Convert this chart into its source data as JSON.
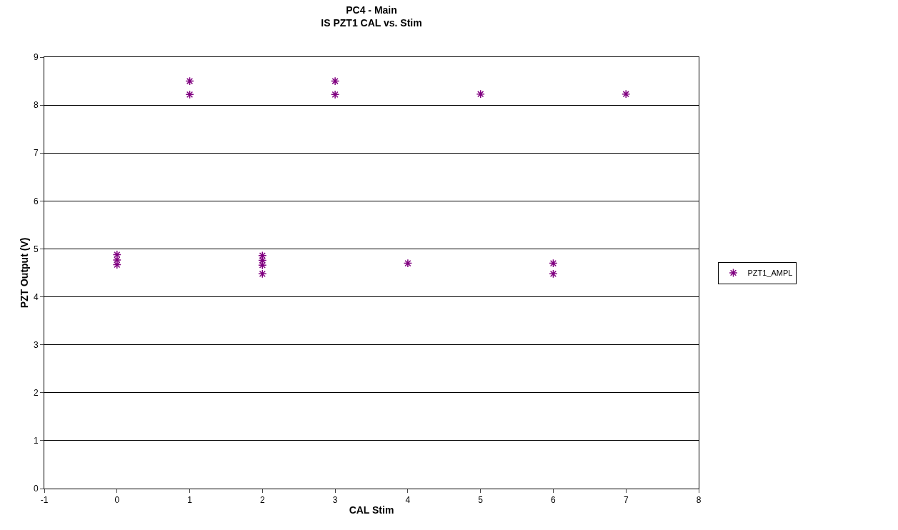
{
  "chart_data": {
    "type": "scatter",
    "title": "PC4 - Main\nIS PZT1 CAL vs. Stim",
    "xlabel": "CAL Stim",
    "ylabel": "PZT Output (V)",
    "x": [
      0,
      0,
      0,
      1,
      1,
      2,
      2,
      2,
      2,
      3,
      3,
      4,
      5,
      6,
      6,
      7
    ],
    "series": [
      {
        "name": "PZT1_AMPL",
        "color": "#800080",
        "values": [
          4.88,
          4.77,
          4.67,
          8.5,
          8.22,
          4.86,
          4.76,
          4.66,
          4.48,
          8.5,
          8.22,
          4.7,
          8.23,
          4.7,
          4.48,
          8.23
        ]
      }
    ],
    "xlim": [
      -1,
      8
    ],
    "xticks": [
      -1,
      0,
      1,
      2,
      3,
      4,
      5,
      6,
      7,
      8
    ],
    "ylim": [
      0,
      9
    ],
    "yticks": [
      0,
      1,
      2,
      3,
      4,
      5,
      6,
      7,
      8,
      9
    ],
    "grid": "y",
    "legend": "right",
    "marker": "cross"
  }
}
